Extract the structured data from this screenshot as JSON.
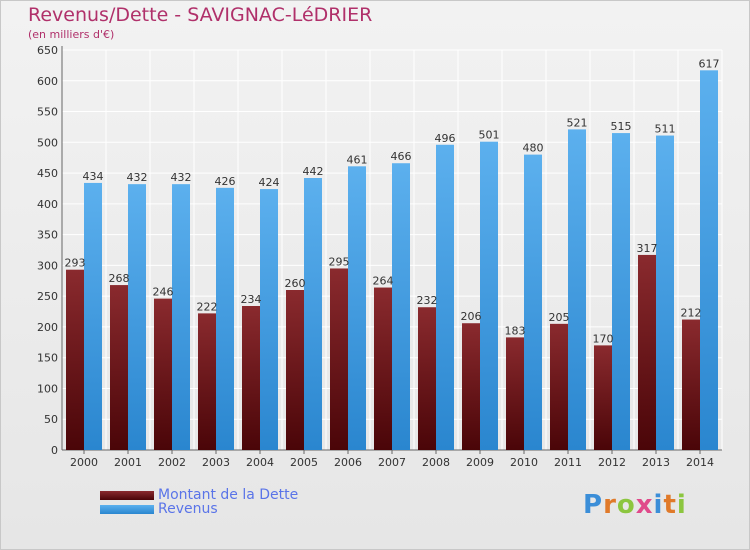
{
  "header": {
    "title": "Revenus/Dette - SAVIGNAC-LéDRIER",
    "subtitle": "(en milliers d'€)"
  },
  "legend": {
    "dette_label": "Montant de la Dette",
    "revenus_label": "Revenus"
  },
  "logo": {
    "text": "Proxiti"
  },
  "colors": {
    "dette": "#6a1014",
    "revenus": "#3f9be0",
    "title": "#b0306a",
    "legend_text": "#5a74e8"
  },
  "chart_data": {
    "type": "bar",
    "title": "Revenus/Dette - SAVIGNAC-LéDRIER",
    "subtitle": "(en milliers d'€)",
    "categories": [
      "2000",
      "2001",
      "2002",
      "2003",
      "2004",
      "2005",
      "2006",
      "2007",
      "2008",
      "2009",
      "2010",
      "2011",
      "2012",
      "2013",
      "2014"
    ],
    "series": [
      {
        "name": "Montant de la Dette",
        "values": [
          293,
          268,
          246,
          222,
          234,
          260,
          295,
          264,
          232,
          206,
          183,
          205,
          170,
          317,
          212
        ]
      },
      {
        "name": "Revenus",
        "values": [
          434,
          432,
          432,
          426,
          424,
          442,
          461,
          466,
          496,
          501,
          480,
          521,
          515,
          511,
          617
        ]
      }
    ],
    "ylim": [
      0,
      650
    ],
    "ytick_step": 50,
    "grid": true,
    "legend_position": "bottom-left"
  }
}
